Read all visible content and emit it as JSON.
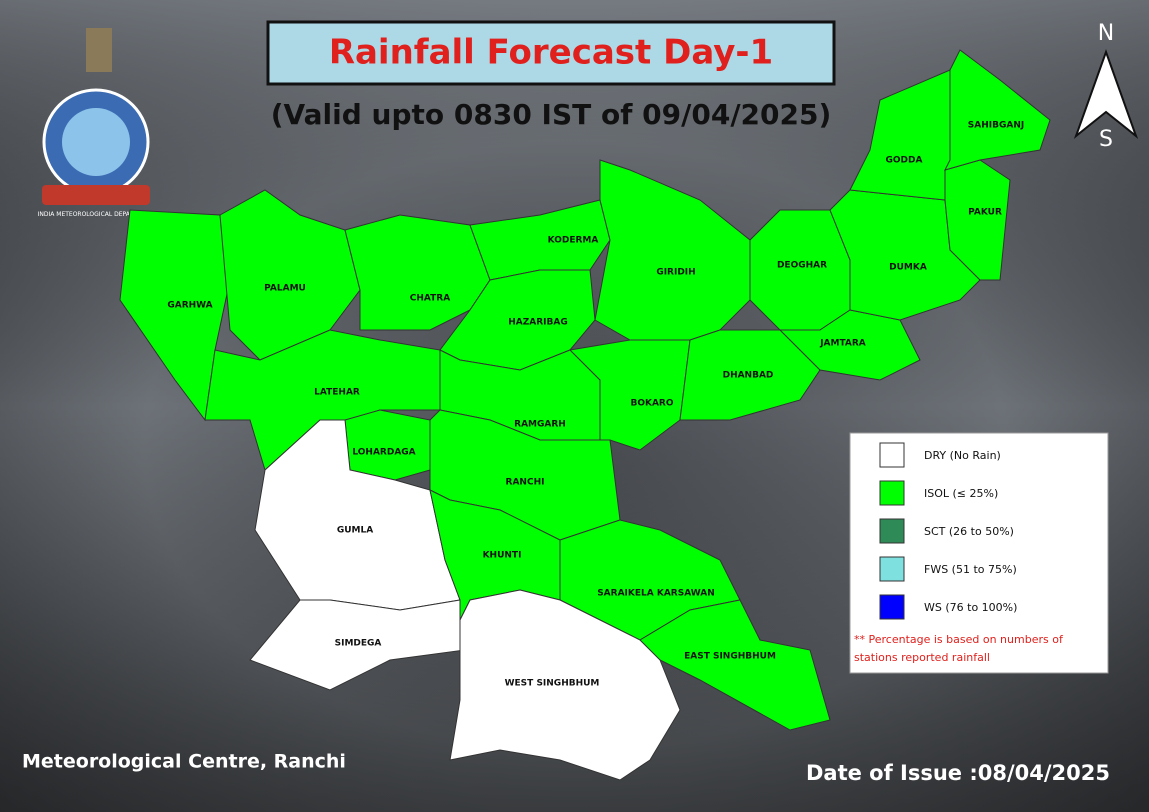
{
  "header": {
    "title": "Rainfall Forecast Day-1",
    "subtitle": "(Valid upto 0830 IST of 09/04/2025)"
  },
  "logo": {
    "text": "INDIA METEOROLOGICAL DEPARTMENT"
  },
  "compass": {
    "north": "N",
    "south": "S"
  },
  "districts": [
    {
      "name": "GARHWA",
      "color": "#00ff00"
    },
    {
      "name": "PALAMU",
      "color": "#00ff00"
    },
    {
      "name": "CHATRA",
      "color": "#00ff00"
    },
    {
      "name": "LATEHAR",
      "color": "#00ff00"
    },
    {
      "name": "LOHARDAGA",
      "color": "#00ff00"
    },
    {
      "name": "GUMLA",
      "color": "#ffffff"
    },
    {
      "name": "SIMDEGA",
      "color": "#ffffff"
    },
    {
      "name": "KODERMA",
      "color": "#00ff00"
    },
    {
      "name": "HAZARIBAG",
      "color": "#00ff00"
    },
    {
      "name": "GIRIDIH",
      "color": "#00ff00"
    },
    {
      "name": "RAMGARH",
      "color": "#00ff00"
    },
    {
      "name": "RANCHI",
      "color": "#00ff00"
    },
    {
      "name": "BOKARO",
      "color": "#00ff00"
    },
    {
      "name": "DHANBAD",
      "color": "#00ff00"
    },
    {
      "name": "DEOGHAR",
      "color": "#00ff00"
    },
    {
      "name": "JAMTARA",
      "color": "#00ff00"
    },
    {
      "name": "DUMKA",
      "color": "#00ff00"
    },
    {
      "name": "GODDA",
      "color": "#00ff00"
    },
    {
      "name": "PAKUR",
      "color": "#00ff00"
    },
    {
      "name": "SAHIBGANJ",
      "color": "#00ff00"
    },
    {
      "name": "KHUNTI",
      "color": "#00ff00"
    },
    {
      "name": "SARAIKELA KARSAWAN",
      "color": "#00ff00"
    },
    {
      "name": "EAST SINGHBHUM",
      "color": "#00ff00"
    },
    {
      "name": "WEST SINGHBHUM",
      "color": "#ffffff"
    }
  ],
  "legend": {
    "items": [
      {
        "label": "DRY (No Rain)",
        "color": "#ffffff"
      },
      {
        "label": "ISOL (≤ 25%)",
        "color": "#00ff00"
      },
      {
        "label": "SCT (26 to 50%)",
        "color": "#2e8b57"
      },
      {
        "label": "FWS (51 to 75%)",
        "color": "#7fe0e0"
      },
      {
        "label": "WS (76 to 100%)",
        "color": "#0000ff"
      }
    ],
    "note": [
      "** Percentage is based on numbers of",
      "stations reported rainfall"
    ]
  },
  "footer": {
    "left": "Meteorological Centre, Ranchi",
    "right": "Date of Issue :08/04/2025"
  }
}
